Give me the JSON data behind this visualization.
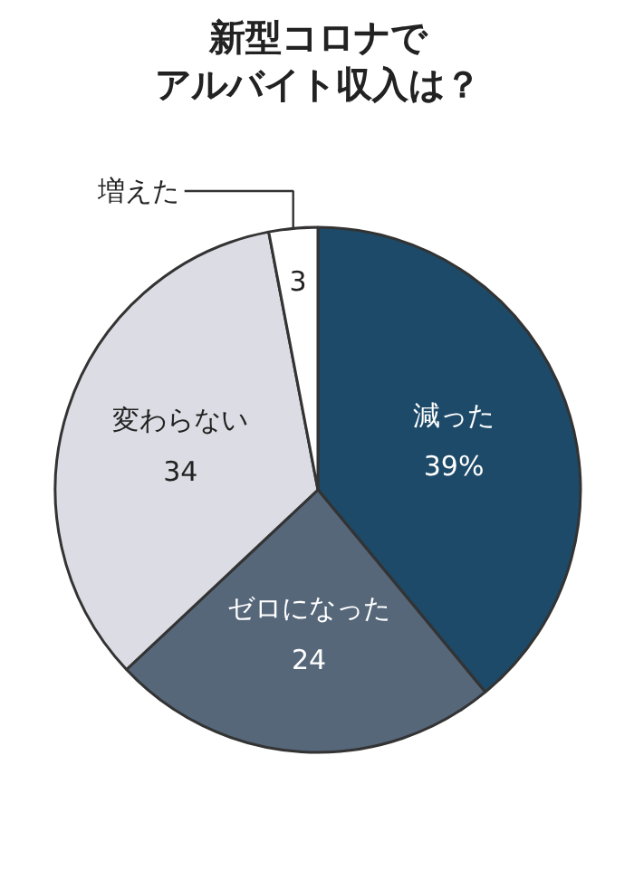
{
  "chart_data": {
    "type": "pie",
    "title": "新型コロナでアルバイト収入は？",
    "categories": [
      "減った",
      "ゼロになった",
      "変わらない",
      "増えた"
    ],
    "values": [
      39,
      24,
      34,
      3
    ],
    "value_labels": [
      "39%",
      "24",
      "34",
      "3"
    ],
    "colors": [
      "#1d4a68",
      "#56677a",
      "#dcdce4",
      "#ffffff"
    ]
  }
}
